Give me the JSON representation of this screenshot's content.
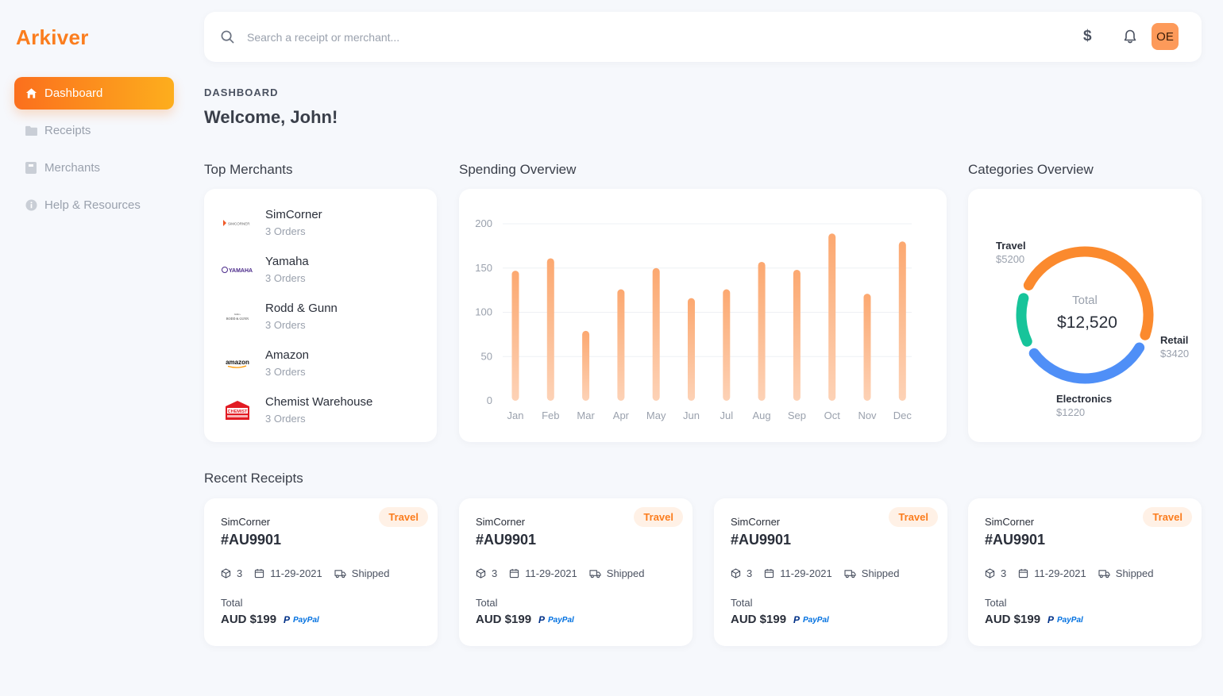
{
  "app": {
    "logo": "Arkiver"
  },
  "sidebar": {
    "items": [
      {
        "label": "Dashboard",
        "icon": "home-icon",
        "active": true
      },
      {
        "label": "Receipts",
        "icon": "folder-icon",
        "active": false
      },
      {
        "label": "Merchants",
        "icon": "store-icon",
        "active": false
      },
      {
        "label": "Help & Resources",
        "icon": "info-icon",
        "active": false
      }
    ]
  },
  "header": {
    "search_placeholder": "Search a receipt or merchant...",
    "avatar_initials": "OE"
  },
  "page": {
    "eyebrow": "DASHBOARD",
    "title": "Welcome, John!"
  },
  "top_merchants": {
    "title": "Top Merchants",
    "items": [
      {
        "name": "SimCorner",
        "orders": "3 Orders",
        "logo_text": "SIMCORNER"
      },
      {
        "name": "Yamaha",
        "orders": "3 Orders",
        "logo_text": "YAMAHA"
      },
      {
        "name": "Rodd & Gunn",
        "orders": "3 Orders",
        "logo_text": "RODD & GUNN"
      },
      {
        "name": "Amazon",
        "orders": "3 Orders",
        "logo_text": "amazon"
      },
      {
        "name": "Chemist Warehouse",
        "orders": "3 Orders",
        "logo_text": "CHEMIST"
      }
    ]
  },
  "spending": {
    "title": "Spending Overview"
  },
  "chart_data": {
    "type": "bar",
    "title": "",
    "categories": [
      "Jan",
      "Feb",
      "Mar",
      "Apr",
      "May",
      "Jun",
      "Jul",
      "Aug",
      "Sep",
      "Oct",
      "Nov",
      "Dec"
    ],
    "values": [
      147,
      161,
      79,
      126,
      150,
      116,
      126,
      157,
      148,
      189,
      121,
      180
    ],
    "ylim": [
      0,
      200
    ],
    "yticks": [
      0,
      50,
      100,
      150,
      200
    ],
    "grid": true,
    "color": "#fdb98c"
  },
  "categories": {
    "title": "Categories Overview",
    "total_label": "Total",
    "total_value": "$12,520",
    "items": [
      {
        "name": "Travel",
        "value": "$5200",
        "amount": 5200,
        "color": "#fb8a2e"
      },
      {
        "name": "Retail",
        "value": "$3420",
        "amount": 3420,
        "color": "#4f8ff7"
      },
      {
        "name": "Electronics",
        "value": "$1220",
        "amount": 1220,
        "color": "#17c49a"
      }
    ]
  },
  "recent": {
    "title": "Recent Receipts",
    "receipts": [
      {
        "merchant": "SimCorner",
        "id": "#AU9901",
        "tag": "Travel",
        "items": "3",
        "date": "11-29-2021",
        "status": "Shipped",
        "total_label": "Total",
        "total": "AUD $199",
        "payment": "PayPal"
      },
      {
        "merchant": "SimCorner",
        "id": "#AU9901",
        "tag": "Travel",
        "items": "3",
        "date": "11-29-2021",
        "status": "Shipped",
        "total_label": "Total",
        "total": "AUD $199",
        "payment": "PayPal"
      },
      {
        "merchant": "SimCorner",
        "id": "#AU9901",
        "tag": "Travel",
        "items": "3",
        "date": "11-29-2021",
        "status": "Shipped",
        "total_label": "Total",
        "total": "AUD $199",
        "payment": "PayPal"
      },
      {
        "merchant": "SimCorner",
        "id": "#AU9901",
        "tag": "Travel",
        "items": "3",
        "date": "11-29-2021",
        "status": "Shipped",
        "total_label": "Total",
        "total": "AUD $199",
        "payment": "PayPal"
      }
    ]
  },
  "colors": {
    "accent": "#fb7d1e",
    "accent_gradient_end": "#fdae1d",
    "background": "#f6f8fc",
    "card": "#ffffff",
    "muted_text": "#9aa1ad"
  }
}
